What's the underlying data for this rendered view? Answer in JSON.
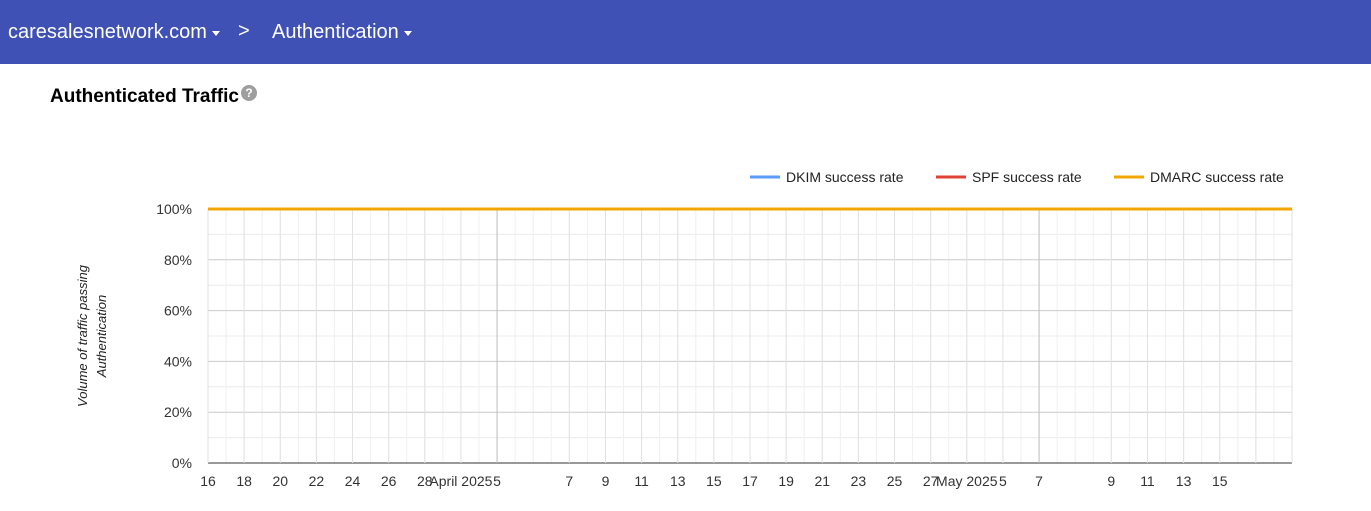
{
  "header": {
    "domain": "caresalesnetwork.com",
    "separator": ">",
    "section": "Authentication"
  },
  "page": {
    "title": "Authenticated Traffic",
    "help_icon": "?"
  },
  "colors": {
    "header_bg": "#3f51b5",
    "dkim": "#5b9cf6",
    "spf": "#e04336",
    "dmarc": "#f2a600"
  },
  "chart_data": {
    "type": "line",
    "ylabel": "Volume of traffic passing Authentication",
    "ylim": [
      0,
      100
    ],
    "y_ticks": [
      "0%",
      "20%",
      "40%",
      "60%",
      "80%",
      "100%"
    ],
    "x_start": "2025-03-16",
    "x_end": "2025-05-15",
    "x_tick_labels": [
      "16",
      "18",
      "20",
      "22",
      "24",
      "26",
      "28",
      "April 2025",
      "5",
      "7",
      "9",
      "11",
      "13",
      "15",
      "17",
      "19",
      "21",
      "23",
      "25",
      "27",
      "May 2025",
      "5",
      "7",
      "9",
      "11",
      "13",
      "15"
    ],
    "legend_position": "top-right",
    "series": [
      {
        "name": "DKIM success rate",
        "color": "#5b9cf6",
        "constant_value": 100
      },
      {
        "name": "SPF success rate",
        "color": "#e04336",
        "constant_value": 100
      },
      {
        "name": "DMARC success rate",
        "color": "#f2a600",
        "constant_value": 100
      }
    ]
  }
}
